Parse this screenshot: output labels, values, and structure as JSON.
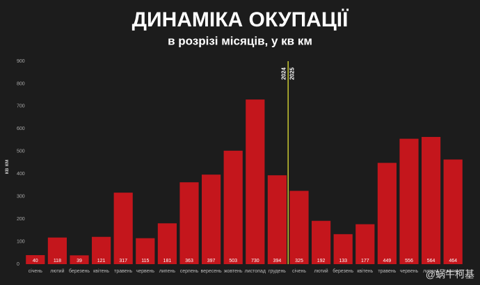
{
  "chart_data": {
    "type": "bar",
    "title": "ДИНАМІКА ОКУПАЦІЇ",
    "subtitle": "в розрізі місяців, у кв км",
    "y_label": "кв км",
    "categories": [
      "січень",
      "лютий",
      "березень",
      "квітень",
      "травень",
      "червень",
      "липень",
      "серпень",
      "вересень",
      "жовтень",
      "листопад",
      "грудень",
      "січень",
      "лютий",
      "березень",
      "квітень",
      "травень",
      "червень",
      "липень",
      "серпень"
    ],
    "values": [
      40,
      118,
      39,
      121,
      317,
      115,
      181,
      363,
      397,
      503,
      730,
      394,
      325,
      192,
      133,
      177,
      449,
      556,
      564,
      464
    ],
    "color": "#c4161c",
    "ylim": [
      0,
      900
    ],
    "yticks": [
      0,
      100,
      200,
      300,
      400,
      500,
      600,
      700,
      800,
      900
    ],
    "grid": false,
    "annotations": [
      "2024",
      "2025"
    ],
    "divider_color": "#c8c832",
    "watermark": "@蜗牛柯基"
  }
}
